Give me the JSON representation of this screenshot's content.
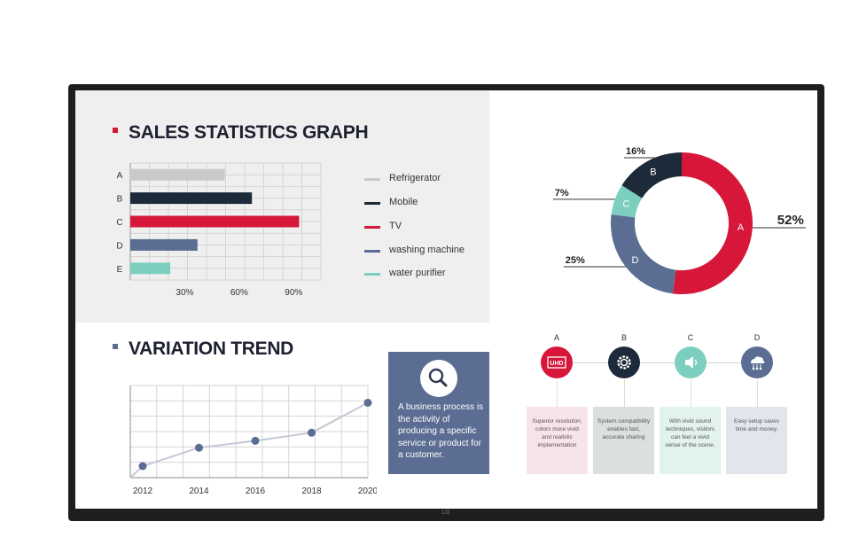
{
  "brand": "LG",
  "sales": {
    "title": "SALES STATISTICS GRAPH",
    "accent": "#d6173a",
    "chart_data": {
      "type": "bar",
      "orientation": "horizontal",
      "categories": [
        "A",
        "B",
        "C",
        "D",
        "E"
      ],
      "values": [
        52,
        67,
        93,
        37,
        22
      ],
      "colors": [
        "#c9c9c9",
        "#1c2a3a",
        "#d6173a",
        "#5b6d92",
        "#7ccfbf"
      ],
      "xticks": [
        "30%",
        "60%",
        "90%"
      ],
      "xlim": [
        0,
        105
      ],
      "grid": true
    },
    "legend": [
      {
        "label": "Refrigerator",
        "color": "#c9c9c9"
      },
      {
        "label": "Mobile",
        "color": "#1c2a3a"
      },
      {
        "label": "TV",
        "color": "#d6173a"
      },
      {
        "label": "washing machine",
        "color": "#5b6d92"
      },
      {
        "label": "water purifier",
        "color": "#7ccfbf"
      }
    ]
  },
  "donut": {
    "chart_data": {
      "type": "pie",
      "donut": true,
      "slices": [
        {
          "label": "A",
          "value": 52,
          "pct_label": "52%",
          "color": "#d6173a"
        },
        {
          "label": "D",
          "value": 25,
          "pct_label": "25%",
          "color": "#5b6d92"
        },
        {
          "label": "C",
          "value": 7,
          "pct_label": "7%",
          "color": "#7ccfbf"
        },
        {
          "label": "B",
          "value": 16,
          "pct_label": "16%",
          "color": "#1c2a3a"
        }
      ]
    }
  },
  "trend": {
    "title": "VARIATION TREND",
    "accent": "#5b6d92",
    "chart_data": {
      "type": "line",
      "x": [
        2012,
        2014,
        2016,
        2018,
        2020
      ],
      "y": [
        10,
        26,
        32,
        39,
        65
      ],
      "xlabels": [
        "2012",
        "2014",
        "2016",
        "2018",
        "2020"
      ],
      "ylim": [
        0,
        80
      ],
      "color": "#5b6d92",
      "grid": true
    }
  },
  "infobox": {
    "icon": "magnifier-icon",
    "text": "A business process is the activity of producing a specific service or product for a customer."
  },
  "features": [
    {
      "letter": "A",
      "icon": "uhd-icon",
      "icon_text": "UHD",
      "color": "#d6173a",
      "box_color": "#f6e4ea",
      "text": "Superior resolution, colors more vivid and realistic implementation"
    },
    {
      "letter": "B",
      "icon": "gear-icon",
      "color": "#1c2a3a",
      "box_color": "#dcdfe0",
      "text": "System compatibility enables fast, accurate sharing"
    },
    {
      "letter": "C",
      "icon": "speaker-icon",
      "color": "#7ccfbf",
      "box_color": "#e2f2ef",
      "text": "With vivid sound techniques, visitors can feel a vivid sense of the scene."
    },
    {
      "letter": "D",
      "icon": "cloud-network-icon",
      "color": "#5b6d92",
      "box_color": "#e3e5ec",
      "text": "Easy setup saves time and money."
    }
  ]
}
